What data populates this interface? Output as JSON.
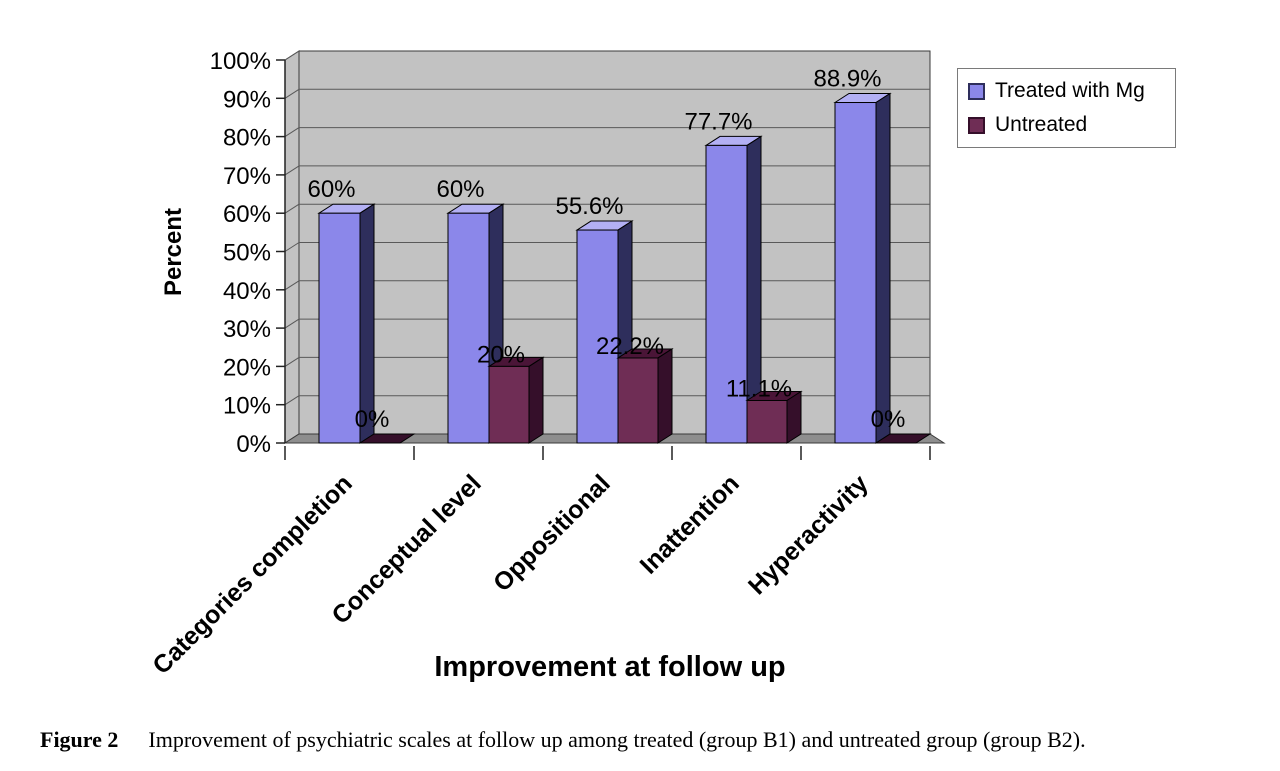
{
  "chart_data": {
    "type": "bar",
    "style": "3d-bar",
    "categories": [
      "Categories completion",
      "Conceptual level",
      "Oppositional",
      "Inattention",
      "Hyperactivity"
    ],
    "series": [
      {
        "name": "Treated with Mg",
        "values": [
          60,
          60,
          55.6,
          77.7,
          88.9
        ],
        "labels": [
          "60%",
          "60%",
          "55.6%",
          "77.7%",
          "88.9%"
        ],
        "color_face": "#8b87ea",
        "color_top": "#b3b0f4",
        "color_side": "#2e2e5c"
      },
      {
        "name": "Untreated",
        "values": [
          0,
          20,
          22.2,
          11.1,
          0
        ],
        "labels": [
          "0%",
          "20%",
          "22.2%",
          "11.1%",
          "0%"
        ],
        "color_face": "#6f2d55",
        "color_top": "#4a1537",
        "color_side": "#350f2a"
      }
    ],
    "xlabel": "Improvement at follow up",
    "ylabel": "Percent",
    "ylim": [
      0,
      100
    ],
    "ytick_step": 10,
    "yticks": [
      "0%",
      "10%",
      "20%",
      "30%",
      "40%",
      "50%",
      "60%",
      "70%",
      "80%",
      "90%",
      "100%"
    ],
    "grid": true,
    "legend_position": "top-right",
    "colors": {
      "wall": "#c2c2c2",
      "floor": "#8e8e8e",
      "grid": "#595959",
      "outline": "#3a3a3a",
      "axis": "#222222"
    }
  },
  "caption": {
    "figure_label": "Figure 2",
    "text": "Improvement of psychiatric scales at follow up among treated (group B1) and untreated group (group B2)."
  }
}
